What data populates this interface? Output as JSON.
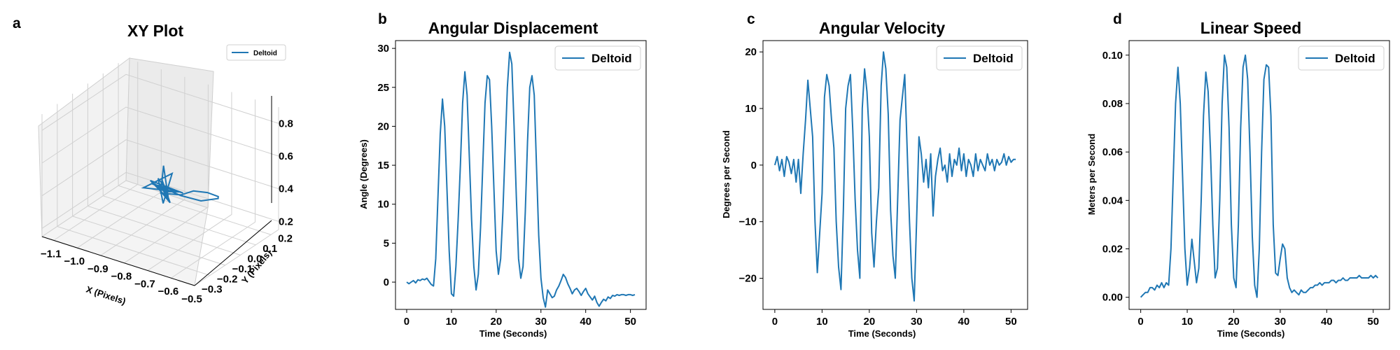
{
  "figure": {
    "panel_letters": [
      "a",
      "b",
      "c",
      "d"
    ],
    "line_color": "#1f77b4"
  },
  "chart_data": [
    {
      "type": "line3d",
      "panel": "a",
      "title": "XY Plot",
      "xlabel": "X (Pixels)",
      "ylabel": "Y (Pixels)",
      "zlabel": "",
      "legend": [
        "Deltoid"
      ],
      "legend_position": "top-right",
      "xlim": [
        -1.15,
        -0.5
      ],
      "ylim": [
        -0.3,
        0.25
      ],
      "zlim": [
        0.15,
        0.9
      ],
      "xticks": [
        "−1.1",
        "−1.0",
        "−0.9",
        "−0.8",
        "−0.7",
        "−0.6",
        "−0.5"
      ],
      "yticks": [
        "−0.3",
        "−0.2",
        "−0.1",
        "0.0",
        "0.1",
        "0.2"
      ],
      "zticks": [
        "0.2",
        "0.4",
        "0.6",
        "0.8"
      ],
      "grid": true,
      "series": [
        {
          "name": "Deltoid",
          "x": [
            -0.82,
            -0.86,
            -0.78,
            -0.88,
            -0.8,
            -0.84,
            -0.76,
            -0.9,
            -0.83,
            -0.79,
            -0.87,
            -0.81,
            -0.85,
            -0.77,
            -0.89,
            -0.8,
            -0.86,
            -0.82,
            -0.74,
            -0.7,
            -0.66,
            -0.64,
            -0.66,
            -0.72,
            -0.78,
            -0.84,
            -0.8,
            -0.86,
            -0.82
          ],
          "y": [
            0.0,
            0.04,
            -0.03,
            0.02,
            -0.05,
            0.05,
            0.01,
            -0.02,
            0.06,
            -0.06,
            0.03,
            0.0,
            -0.04,
            0.04,
            0.01,
            -0.01,
            0.05,
            -0.03,
            -0.02,
            0.0,
            0.03,
            0.07,
            0.1,
            0.08,
            0.04,
            0.01,
            -0.02,
            0.02,
            0.0
          ],
          "z": [
            0.38,
            0.42,
            0.36,
            0.4,
            0.44,
            0.35,
            0.41,
            0.39,
            0.46,
            0.37,
            0.43,
            0.4,
            0.45,
            0.38,
            0.42,
            0.36,
            0.5,
            0.4,
            0.42,
            0.45,
            0.44,
            0.4,
            0.36,
            0.33,
            0.36,
            0.4,
            0.38,
            0.41,
            0.39
          ]
        }
      ]
    },
    {
      "type": "line",
      "panel": "b",
      "title": "Angular Displacement",
      "xlabel": "Time (Seconds)",
      "ylabel": "Angle (Degrees)",
      "xlim": [
        -2.5,
        53.5
      ],
      "ylim": [
        -3.5,
        31
      ],
      "xticks": [
        0,
        10,
        20,
        30,
        40,
        50
      ],
      "yticks": [
        0,
        5,
        10,
        15,
        20,
        25,
        30
      ],
      "grid": false,
      "legend": [
        "Deltoid"
      ],
      "legend_position": "top-right",
      "series": [
        {
          "name": "Deltoid",
          "x": [
            0,
            0.5,
            1,
            1.5,
            2,
            2.5,
            3,
            3.5,
            4,
            4.5,
            5,
            5.5,
            6,
            6.5,
            7,
            7.5,
            8,
            8.5,
            9,
            9.5,
            10,
            10.5,
            11,
            11.5,
            12,
            12.5,
            13,
            13.5,
            14,
            14.5,
            15,
            15.5,
            16,
            16.5,
            17,
            17.5,
            18,
            18.5,
            19,
            19.5,
            20,
            20.5,
            21,
            21.5,
            22,
            22.5,
            23,
            23.5,
            24,
            24.5,
            25,
            25.5,
            26,
            26.5,
            27,
            27.5,
            28,
            28.5,
            29,
            29.5,
            30,
            30.5,
            31,
            31.5,
            32,
            32.5,
            33,
            33.5,
            34,
            34.5,
            35,
            35.5,
            36,
            36.5,
            37,
            37.5,
            38,
            38.5,
            39,
            39.5,
            40,
            40.5,
            41,
            41.5,
            42,
            42.5,
            43,
            43.5,
            44,
            44.5,
            45,
            45.5,
            46,
            46.5,
            47,
            47.5,
            48,
            48.5,
            49,
            49.5,
            50,
            50.5,
            51
          ],
          "values": [
            0,
            -0.2,
            0,
            0.2,
            -0.1,
            0.3,
            0.2,
            0.4,
            0.3,
            0.5,
            0.1,
            -0.3,
            -0.5,
            3,
            11,
            19,
            23.5,
            20,
            12,
            4,
            -1.5,
            -1.8,
            2,
            8,
            15,
            23,
            27,
            24,
            16,
            8,
            2,
            -1,
            1,
            7,
            15,
            23,
            26.5,
            26,
            20,
            12,
            4,
            1,
            3,
            9,
            17,
            25,
            29.5,
            28,
            20,
            11,
            3,
            0.5,
            2,
            9,
            18,
            25,
            26.5,
            24,
            15,
            6,
            0.5,
            -2,
            -3.2,
            -1,
            -1.5,
            -2,
            -1.8,
            -1,
            -0.5,
            0.2,
            1,
            0.6,
            -0.2,
            -0.8,
            -1.5,
            -1,
            -0.8,
            -1.2,
            -1.7,
            -1.2,
            -0.8,
            -1.5,
            -1.9,
            -2.3,
            -1.8,
            -2.6,
            -3.1,
            -2.6,
            -2.2,
            -2.4,
            -1.9,
            -2.1,
            -1.7,
            -1.8,
            -1.6,
            -1.7,
            -1.6,
            -1.6,
            -1.7,
            -1.6,
            -1.6,
            -1.7,
            -1.6
          ]
        }
      ]
    },
    {
      "type": "line",
      "panel": "c",
      "title": "Angular Velocity",
      "xlabel": "Time (Seconds)",
      "ylabel": "Degrees per Second",
      "xlim": [
        -2.5,
        53.5
      ],
      "ylim": [
        -25.5,
        22
      ],
      "xticks": [
        0,
        10,
        20,
        30,
        40,
        50
      ],
      "yticks": [
        -20,
        -10,
        0,
        10,
        20
      ],
      "grid": false,
      "legend": [
        "Deltoid"
      ],
      "legend_position": "top-right",
      "series": [
        {
          "name": "Deltoid",
          "x": [
            0,
            0.5,
            1,
            1.5,
            2,
            2.5,
            3,
            3.5,
            4,
            4.5,
            5,
            5.5,
            6,
            6.5,
            7,
            7.5,
            8,
            8.5,
            9,
            9.5,
            10,
            10.5,
            11,
            11.5,
            12,
            12.5,
            13,
            13.5,
            14,
            14.5,
            15,
            15.5,
            16,
            16.5,
            17,
            17.5,
            18,
            18.5,
            19,
            19.5,
            20,
            20.5,
            21,
            21.5,
            22,
            22.5,
            23,
            23.5,
            24,
            24.5,
            25,
            25.5,
            26,
            26.5,
            27,
            27.5,
            28,
            28.5,
            29,
            29.5,
            30,
            30.5,
            31,
            31.5,
            32,
            32.5,
            33,
            33.5,
            34,
            34.5,
            35,
            35.5,
            36,
            36.5,
            37,
            37.5,
            38,
            38.5,
            39,
            39.5,
            40,
            40.5,
            41,
            41.5,
            42,
            42.5,
            43,
            43.5,
            44,
            44.5,
            45,
            45.5,
            46,
            46.5,
            47,
            47.5,
            48,
            48.5,
            49,
            49.5,
            50,
            50.5,
            51
          ],
          "values": [
            0,
            1.5,
            -1,
            1,
            -2,
            1.5,
            0.5,
            -1.5,
            1,
            -3,
            1,
            -5,
            2,
            8,
            15,
            10,
            5,
            -10,
            -19,
            -12,
            -5,
            12,
            16,
            14,
            8,
            3,
            -10,
            -18,
            -22,
            -8,
            10,
            14,
            16,
            6,
            -6,
            -15,
            -20,
            10,
            17,
            13,
            5,
            -12,
            -18,
            -10,
            -4,
            14,
            20,
            17,
            9,
            -8,
            -16,
            -20,
            -6,
            8,
            12,
            16,
            3,
            -10,
            -20,
            -24,
            -10,
            5,
            2,
            -3,
            1,
            -4,
            2,
            -9,
            -2,
            1,
            3,
            -1,
            0,
            -3,
            2,
            -2,
            1,
            0,
            3,
            -1,
            2,
            -2,
            1,
            0,
            -2,
            2,
            -1,
            1,
            0,
            -1,
            2,
            0,
            1,
            -1,
            1,
            0,
            0.5,
            2,
            0,
            1.5,
            0.5,
            1,
            1
          ]
        }
      ]
    },
    {
      "type": "line",
      "panel": "d",
      "title": "Linear Speed",
      "xlabel": "Time (Seconds)",
      "ylabel": "Meters per Second",
      "xlim": [
        -2.5,
        53.5
      ],
      "ylim": [
        -0.005,
        0.106
      ],
      "xticks": [
        0,
        10,
        20,
        30,
        40,
        50
      ],
      "yticks": [
        "0.00",
        "0.02",
        "0.04",
        "0.06",
        "0.08",
        "0.10"
      ],
      "grid": false,
      "legend": [
        "Deltoid"
      ],
      "legend_position": "top-right",
      "series": [
        {
          "name": "Deltoid",
          "x": [
            0,
            0.5,
            1,
            1.5,
            2,
            2.5,
            3,
            3.5,
            4,
            4.5,
            5,
            5.5,
            6,
            6.5,
            7,
            7.5,
            8,
            8.5,
            9,
            9.5,
            10,
            10.5,
            11,
            11.5,
            12,
            12.5,
            13,
            13.5,
            14,
            14.5,
            15,
            15.5,
            16,
            16.5,
            17,
            17.5,
            18,
            18.5,
            19,
            19.5,
            20,
            20.5,
            21,
            21.5,
            22,
            22.5,
            23,
            23.5,
            24,
            24.5,
            25,
            25.5,
            26,
            26.5,
            27,
            27.5,
            28,
            28.5,
            29,
            29.5,
            30,
            30.5,
            31,
            31.5,
            32,
            32.5,
            33,
            33.5,
            34,
            34.5,
            35,
            35.5,
            36,
            36.5,
            37,
            37.5,
            38,
            38.5,
            39,
            39.5,
            40,
            40.5,
            41,
            41.5,
            42,
            42.5,
            43,
            43.5,
            44,
            44.5,
            45,
            45.5,
            46,
            46.5,
            47,
            47.5,
            48,
            48.5,
            49,
            49.5,
            50,
            50.5,
            51
          ],
          "values": [
            0.0,
            0.001,
            0.002,
            0.002,
            0.004,
            0.004,
            0.003,
            0.005,
            0.004,
            0.006,
            0.004,
            0.006,
            0.005,
            0.02,
            0.05,
            0.08,
            0.095,
            0.08,
            0.05,
            0.02,
            0.005,
            0.012,
            0.024,
            0.015,
            0.006,
            0.012,
            0.04,
            0.075,
            0.093,
            0.085,
            0.06,
            0.03,
            0.008,
            0.012,
            0.04,
            0.08,
            0.1,
            0.095,
            0.07,
            0.03,
            0.008,
            0.004,
            0.03,
            0.07,
            0.095,
            0.1,
            0.09,
            0.06,
            0.025,
            0.005,
            0.0,
            0.02,
            0.06,
            0.09,
            0.096,
            0.095,
            0.075,
            0.03,
            0.01,
            0.009,
            0.016,
            0.022,
            0.02,
            0.008,
            0.004,
            0.002,
            0.003,
            0.002,
            0.001,
            0.003,
            0.002,
            0.002,
            0.003,
            0.004,
            0.004,
            0.005,
            0.005,
            0.006,
            0.005,
            0.006,
            0.006,
            0.006,
            0.007,
            0.007,
            0.006,
            0.007,
            0.007,
            0.008,
            0.007,
            0.007,
            0.008,
            0.008,
            0.008,
            0.008,
            0.009,
            0.008,
            0.008,
            0.008,
            0.008,
            0.009,
            0.008,
            0.009,
            0.008
          ]
        }
      ]
    }
  ]
}
